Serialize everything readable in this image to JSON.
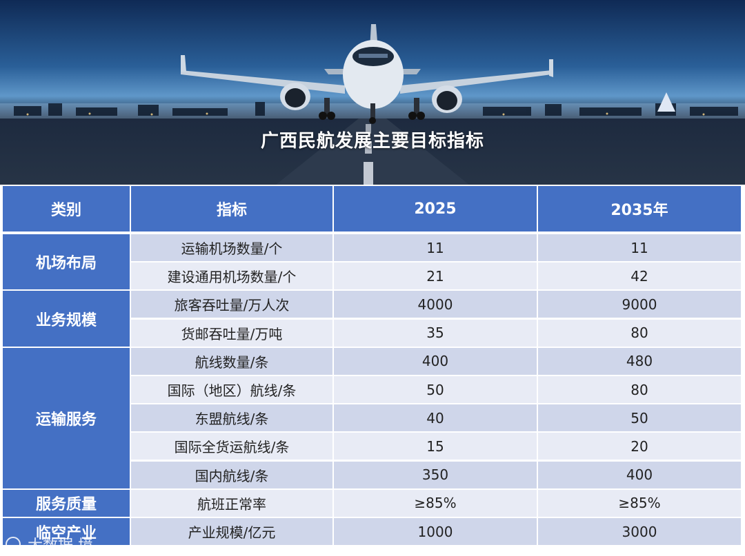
{
  "banner": {
    "title": "广西民航发展主要目标指标"
  },
  "table": {
    "headers": [
      "类别",
      "指标",
      "2025",
      "2035年"
    ],
    "rows": [
      {
        "indicator": "运输机场数量/个",
        "v2025": "11",
        "v2035": "11"
      },
      {
        "indicator": "建设通用机场数量/个",
        "v2025": "21",
        "v2035": "42"
      },
      {
        "indicator": "旅客吞吐量/万人次",
        "v2025": "4000",
        "v2035": "9000"
      },
      {
        "indicator": "货邮吞吐量/万吨",
        "v2025": "35",
        "v2035": "80"
      },
      {
        "indicator": "航线数量/条",
        "v2025": "400",
        "v2035": "480"
      },
      {
        "indicator": "国际（地区）航线/条",
        "v2025": "50",
        "v2035": "80"
      },
      {
        "indicator": "东盟航线/条",
        "v2025": "40",
        "v2035": "50"
      },
      {
        "indicator": "国际全货运航线/条",
        "v2025": "15",
        "v2035": "20"
      },
      {
        "indicator": "国内航线/条",
        "v2025": "350",
        "v2035": "400"
      },
      {
        "indicator": "航班正常率",
        "v2025": "≥85%",
        "v2035": "≥85%"
      },
      {
        "indicator": "产业规模/亿元",
        "v2025": "1000",
        "v2035": "3000"
      }
    ],
    "categories": [
      {
        "label": "机场布局",
        "rows": [
          0,
          1
        ]
      },
      {
        "label": "业务规模",
        "rows": [
          2,
          3
        ]
      },
      {
        "label": "运输服务",
        "rows": [
          4,
          8
        ]
      },
      {
        "label": "服务质量",
        "rows": [
          9,
          9
        ]
      },
      {
        "label": "临空产业",
        "rows": [
          10,
          10
        ]
      }
    ]
  },
  "watermark": {
    "text": "大数据 境"
  },
  "colors": {
    "header_blue": "#4470c4",
    "row_light": "#e8ebf5",
    "row_dark": "#cfd6ea"
  }
}
